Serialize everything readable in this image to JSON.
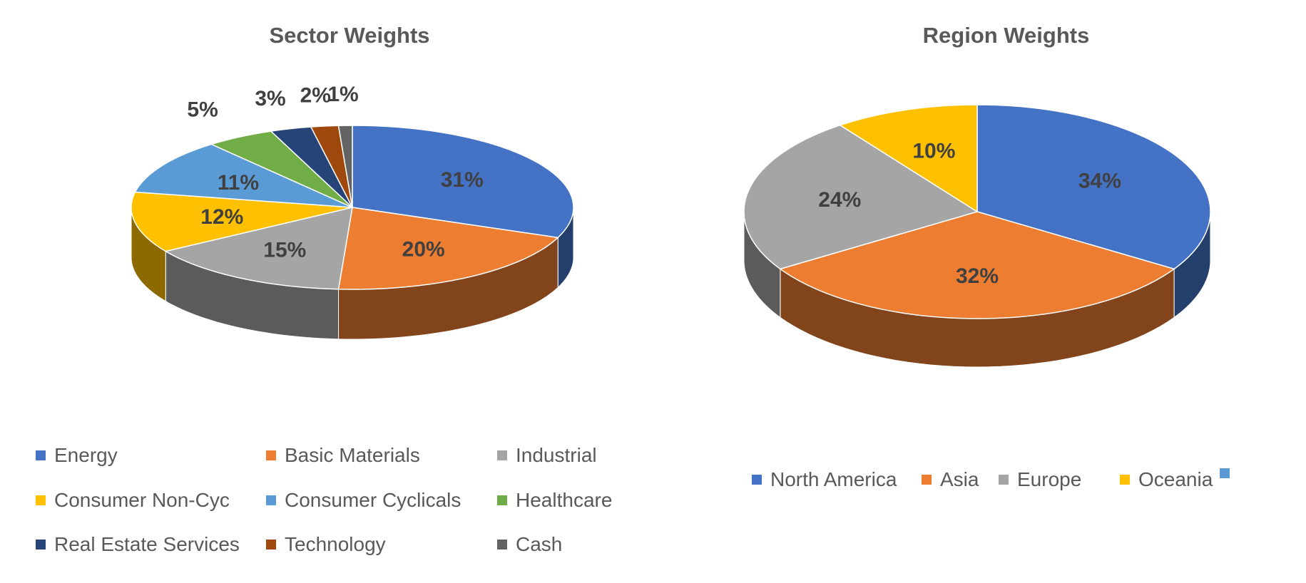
{
  "chart_data": [
    {
      "type": "pie",
      "title": "Sector Weights",
      "legend_placement": "bottom",
      "categories": [
        "Energy",
        "Basic Materials",
        "Industrial",
        "Consumer Non-Cyc",
        "Consumer Cyclicals",
        "Healthcare",
        "Real Estate Services",
        "Technology",
        "Cash"
      ],
      "values": [
        31,
        20,
        15,
        12,
        11,
        5,
        3,
        2,
        1
      ],
      "data_labels": [
        "31%",
        "20%",
        "15%",
        "12%",
        "11%",
        "5%",
        "3%",
        "2%",
        "1%"
      ],
      "colors": [
        "#4472C4",
        "#ED7D31",
        "#A5A5A5",
        "#FFC000",
        "#5B9BD5",
        "#70AD47",
        "#264478",
        "#9E480E",
        "#636363"
      ]
    },
    {
      "type": "pie",
      "title": "Region Weights",
      "legend_placement": "bottom",
      "categories": [
        "North America",
        "Asia",
        "Europe",
        "Oceania",
        ""
      ],
      "values": [
        34,
        32,
        24,
        10,
        0
      ],
      "data_labels": [
        "34%",
        "32%",
        "24%",
        "10%",
        ""
      ],
      "colors": [
        "#4472C4",
        "#ED7D31",
        "#A5A5A5",
        "#FFC000",
        "#5B9BD5"
      ]
    }
  ]
}
